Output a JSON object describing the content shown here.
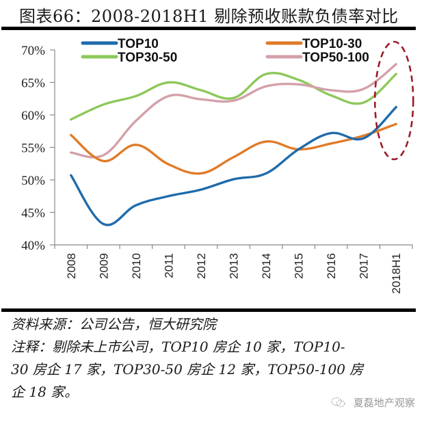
{
  "figure": {
    "title": "图表66：2008-2018H1 剔除预收账款负债率对比",
    "source": "资料来源：公司公告，恒大研究院",
    "note_lines": [
      "注释：剔除未上市公司，TOP10 房企 10 家，TOP10-",
      "30 房企 17 家，TOP30-50 房企 12 家，TOP50-100 房",
      "企 18 家。"
    ],
    "watermark": "夏磊地产观察",
    "watermark_icon": "wechat-icon"
  },
  "chart_data": {
    "type": "line",
    "title": "2008-2018H1 剔除预收账款负债率对比",
    "xlabel": "",
    "ylabel": "",
    "categories": [
      "2008",
      "2009",
      "2010",
      "2011",
      "2012",
      "2013",
      "2014",
      "2015",
      "2016",
      "2017",
      "2018H1"
    ],
    "ylim": [
      40,
      70
    ],
    "yticks": [
      40,
      45,
      50,
      55,
      60,
      65,
      70
    ],
    "ytick_labels": [
      "40%",
      "45%",
      "50%",
      "55%",
      "60%",
      "65%",
      "70%"
    ],
    "grid": false,
    "smooth": true,
    "legend": {
      "placement": "top",
      "columns": 2
    },
    "series": [
      {
        "name": "TOP10",
        "color": "#1f6bab",
        "values": [
          50.7,
          43.2,
          46.1,
          47.5,
          48.5,
          50.1,
          51.0,
          54.7,
          57.2,
          56.4,
          61.2
        ]
      },
      {
        "name": "TOP10-30",
        "color": "#e07b28",
        "values": [
          56.9,
          52.9,
          55.4,
          52.4,
          51.0,
          53.5,
          55.9,
          54.7,
          55.6,
          56.8,
          58.6
        ]
      },
      {
        "name": "TOP30-50",
        "color": "#8cc85a",
        "values": [
          59.3,
          61.6,
          62.9,
          65.0,
          63.8,
          62.6,
          66.3,
          65.4,
          63.0,
          61.9,
          66.3
        ]
      },
      {
        "name": "TOP50-100",
        "color": "#d4a0a8",
        "values": [
          54.2,
          53.8,
          59.1,
          62.9,
          62.4,
          62.2,
          64.4,
          64.7,
          63.8,
          64.0,
          67.8
        ]
      }
    ],
    "annotations": [
      {
        "type": "dashed-ellipse",
        "target_category": "2018H1",
        "color": "#9b1b2a"
      }
    ]
  }
}
